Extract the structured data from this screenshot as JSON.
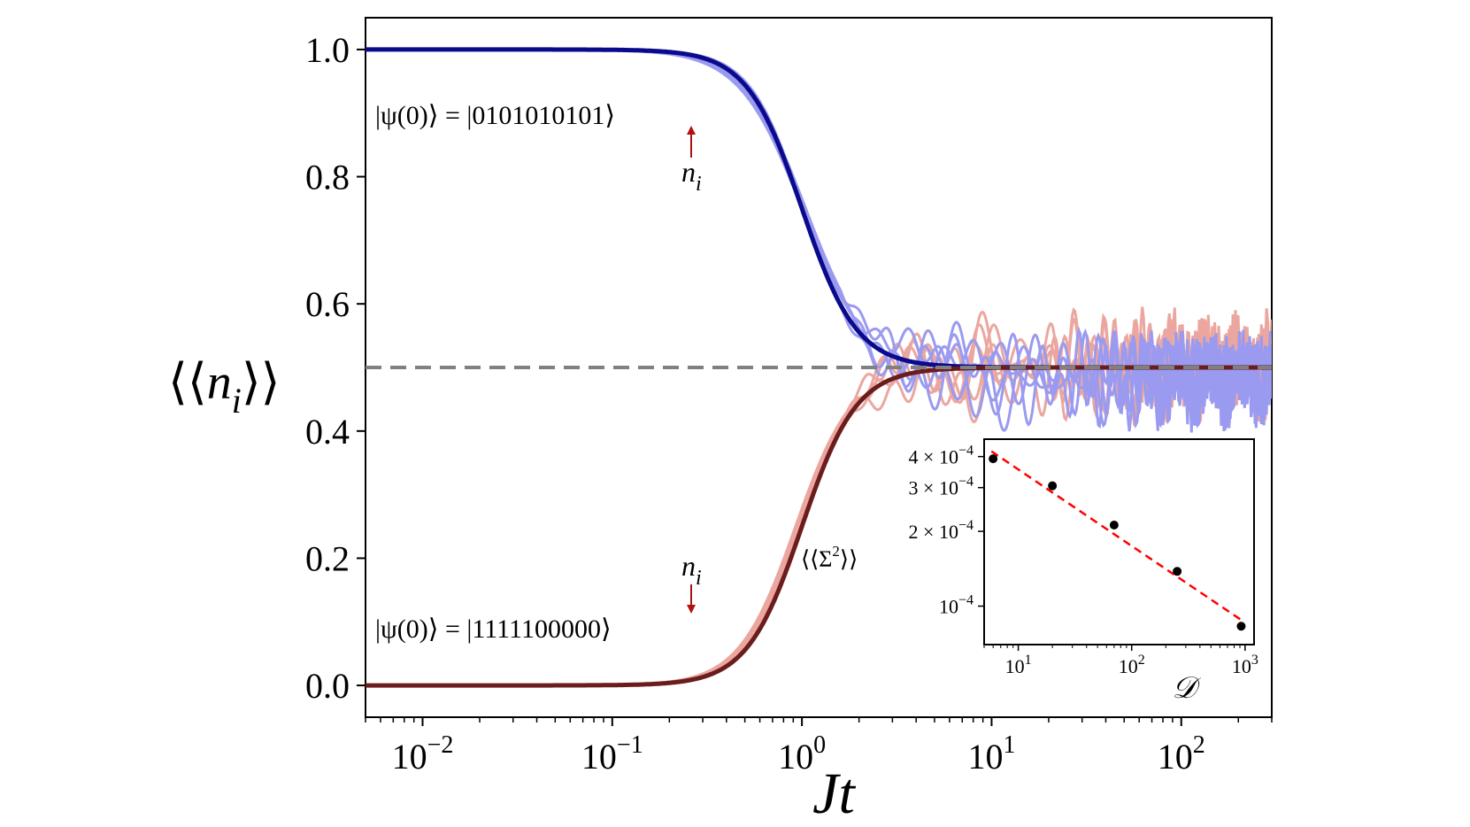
{
  "chart_data": [
    {
      "type": "line",
      "panel": "main",
      "xlabel": "Jt",
      "ylabel": "⟨⟨n_i⟩⟩",
      "xscale": "log",
      "xlim": [
        0.005,
        300
      ],
      "ylim": [
        -0.05,
        1.05
      ],
      "xticks": [
        0.01,
        0.1,
        1,
        10,
        100
      ],
      "xtick_labels": [
        {
          "base": "10",
          "exp": "−2"
        },
        {
          "base": "10",
          "exp": "−1"
        },
        {
          "base": "10",
          "exp": "0"
        },
        {
          "base": "10",
          "exp": "1"
        },
        {
          "base": "10",
          "exp": "2"
        }
      ],
      "yticks": [
        0.0,
        0.2,
        0.4,
        0.6,
        0.8,
        1.0
      ],
      "ytick_labels": [
        "0.0",
        "0.2",
        "0.4",
        "0.6",
        "0.8",
        "1.0"
      ],
      "reference_line": {
        "y": 0.5,
        "style": "dashed",
        "color": "#808080"
      },
      "series": [
        {
          "name": "occupied sites average (|0101010101⟩)",
          "color": "#0a0a8c",
          "start": 1.0,
          "end": 0.5,
          "midpoint_t": 1.0
        },
        {
          "name": "empty sites average (|1111100000⟩)",
          "color": "#6b1c1c",
          "start": 0.0,
          "end": 0.5,
          "midpoint_t": 1.0
        },
        {
          "name": "individual sites, initially occupied",
          "color": "#9a9af0",
          "count": 5
        },
        {
          "name": "individual sites, initially empty",
          "color": "#eba79f",
          "count": 5
        }
      ],
      "annotations": {
        "state_top": "|ψ(0)⟩ = |0101010101⟩",
        "state_bottom": "|ψ(0)⟩ = |1111100000⟩",
        "arrow_label_top": "n",
        "arrow_label_top_sub": "i",
        "arrow_label_bottom": "n",
        "arrow_label_bottom_sub": "i"
      }
    },
    {
      "type": "scatter",
      "panel": "inset",
      "xlabel": "𝒟",
      "ylabel": "⟨⟨Σ²⟩⟩",
      "xscale": "log",
      "yscale": "log",
      "xlim": [
        5,
        1200
      ],
      "ylim": [
        7e-05,
        0.00047
      ],
      "xticks": [
        10,
        100,
        1000
      ],
      "xtick_labels": [
        {
          "base": "10",
          "exp": "1"
        },
        {
          "base": "10",
          "exp": "2"
        },
        {
          "base": "10",
          "exp": "3"
        }
      ],
      "yticks": [
        0.0004,
        0.0003,
        0.0002,
        0.0001
      ],
      "ytick_labels": [
        {
          "mant": "4 × ",
          "base": "10",
          "exp": "−4"
        },
        {
          "mant": "3 × ",
          "base": "10",
          "exp": "−4"
        },
        {
          "mant": "2 × ",
          "base": "10",
          "exp": "−4"
        },
        {
          "mant": "",
          "base": "10",
          "exp": "−4"
        }
      ],
      "points": {
        "x": [
          6,
          20,
          70,
          252,
          924
        ],
        "y": [
          0.000392,
          0.000305,
          0.000212,
          0.000138,
          8.3e-05
        ]
      },
      "fit": {
        "style": "dashed",
        "color": "#ff0000",
        "x": [
          5.8,
          924
        ],
        "y": [
          0.00042,
          8.8e-05
        ]
      }
    }
  ]
}
